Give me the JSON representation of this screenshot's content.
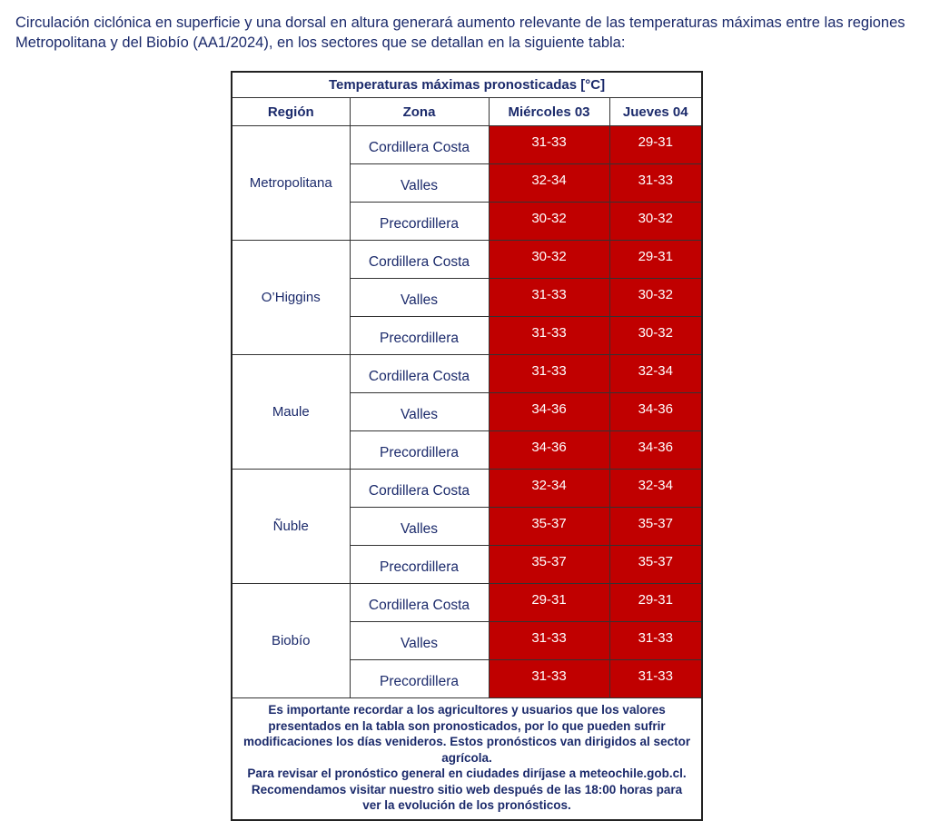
{
  "intro": "Circulación ciclónica en superficie y una dorsal en altura generará aumento relevante de las temperaturas máximas entre las regiones Metropolitana y del Biobío (AA1/2024), en los sectores que se detallan en la siguiente tabla:",
  "table": {
    "title": "Temperaturas máximas pronosticadas [°C]",
    "headers": [
      "Región",
      "Zona",
      "Miércoles 03",
      "Jueves 04"
    ],
    "highlight_color": "#c00000",
    "regions": [
      {
        "name": "Metropolitana",
        "rows": [
          {
            "zona": "Cordillera Costa",
            "mie": "31-33",
            "jue": "29-31"
          },
          {
            "zona": "Valles",
            "mie": "32-34",
            "jue": "31-33"
          },
          {
            "zona": "Precordillera",
            "mie": "30-32",
            "jue": "30-32"
          }
        ]
      },
      {
        "name": "O’Higgins",
        "rows": [
          {
            "zona": "Cordillera Costa",
            "mie": "30-32",
            "jue": "29-31"
          },
          {
            "zona": "Valles",
            "mie": "31-33",
            "jue": "30-32"
          },
          {
            "zona": "Precordillera",
            "mie": "31-33",
            "jue": "30-32"
          }
        ]
      },
      {
        "name": "Maule",
        "rows": [
          {
            "zona": "Cordillera Costa",
            "mie": "31-33",
            "jue": "32-34"
          },
          {
            "zona": "Valles",
            "mie": "34-36",
            "jue": "34-36"
          },
          {
            "zona": "Precordillera",
            "mie": "34-36",
            "jue": "34-36"
          }
        ]
      },
      {
        "name": "Ñuble",
        "rows": [
          {
            "zona": "Cordillera Costa",
            "mie": "32-34",
            "jue": "32-34"
          },
          {
            "zona": "Valles",
            "mie": "35-37",
            "jue": "35-37"
          },
          {
            "zona": "Precordillera",
            "mie": "35-37",
            "jue": "35-37"
          }
        ]
      },
      {
        "name": "Biobío",
        "rows": [
          {
            "zona": "Cordillera Costa",
            "mie": "29-31",
            "jue": "29-31"
          },
          {
            "zona": "Valles",
            "mie": "31-33",
            "jue": "31-33"
          },
          {
            "zona": "Precordillera",
            "mie": "31-33",
            "jue": "31-33"
          }
        ]
      }
    ],
    "footer": "Es importante recordar a los agricultores y usuarios que los valores presentados en la tabla son pronosticados, por lo que pueden sufrir modificaciones los días venideros. Estos pronósticos van dirigidos al sector agrícola.",
    "footer2": "Para revisar el pronóstico general en ciudades diríjase a meteochile.gob.cl. Recomendamos visitar nuestro sitio web después de las 18:00 horas para ver la evolución de los pronósticos."
  }
}
